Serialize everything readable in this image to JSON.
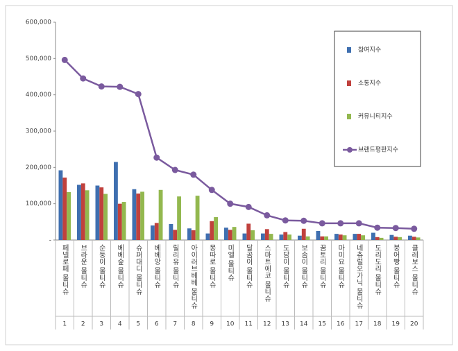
{
  "chart_data": {
    "type": "bar",
    "categories": [
      "페넬로페 물티슈",
      "브라운 물티슈",
      "순둥이 물티슈",
      "베베숲 물티슈",
      "슈퍼대디 물티슈",
      "베베앙 물티슈",
      "릴리유 물티슈",
      "아이러브베베 물티슈",
      "몽따로 물티슈",
      "미엘 물티슈",
      "달곰이 물티슈",
      "스마트에코 물티슈",
      "도담이 물티슈",
      "보솜이 물티슈",
      "꿈토리 물티슈",
      "마미요 물티슈",
      "네츄럴오가닉 물티슈",
      "도리도리 물티슈",
      "붕어빵 물티슈",
      "클레보스 물티슈"
    ],
    "ranks": [
      1,
      2,
      3,
      4,
      5,
      6,
      7,
      8,
      9,
      10,
      11,
      12,
      13,
      14,
      15,
      16,
      17,
      18,
      19,
      20
    ],
    "series": [
      {
        "name": "참여지수",
        "color": "#3f6fb0",
        "values": [
          192000,
          152000,
          150000,
          215000,
          140000,
          40000,
          44000,
          32000,
          18000,
          34000,
          18000,
          18000,
          15000,
          12000,
          25000,
          17000,
          17000,
          20000,
          14000,
          12000
        ]
      },
      {
        "name": "소통지수",
        "color": "#c0413d",
        "values": [
          172000,
          156000,
          145000,
          100000,
          128000,
          47000,
          28000,
          27000,
          52000,
          28000,
          45000,
          30000,
          22000,
          31000,
          10000,
          15000,
          17000,
          8000,
          9000,
          9000
        ]
      },
      {
        "name": "커뮤니티지수",
        "color": "#93b84f",
        "values": [
          132000,
          137000,
          127000,
          105000,
          133000,
          138000,
          120000,
          122000,
          63000,
          36000,
          27000,
          17000,
          15000,
          10000,
          10000,
          13000,
          13000,
          6000,
          8000,
          7000
        ]
      },
      {
        "name": "브랜드평판지수",
        "color": "#7a5a9e",
        "type": "line",
        "values": [
          496000,
          445000,
          423000,
          422000,
          402000,
          227000,
          193000,
          180000,
          138000,
          100000,
          91000,
          68000,
          54000,
          53000,
          46000,
          46000,
          46000,
          34000,
          33000,
          31000
        ]
      }
    ],
    "ylim": [
      0,
      600000
    ],
    "yticks": [
      {
        "value": 0,
        "label": "-"
      },
      {
        "value": 100000,
        "label": "100,000"
      },
      {
        "value": 200000,
        "label": "200,000"
      },
      {
        "value": 300000,
        "label": "300,000"
      },
      {
        "value": 400000,
        "label": "400,000"
      },
      {
        "value": 500000,
        "label": "500,000"
      },
      {
        "value": 600000,
        "label": "600,000"
      }
    ]
  }
}
